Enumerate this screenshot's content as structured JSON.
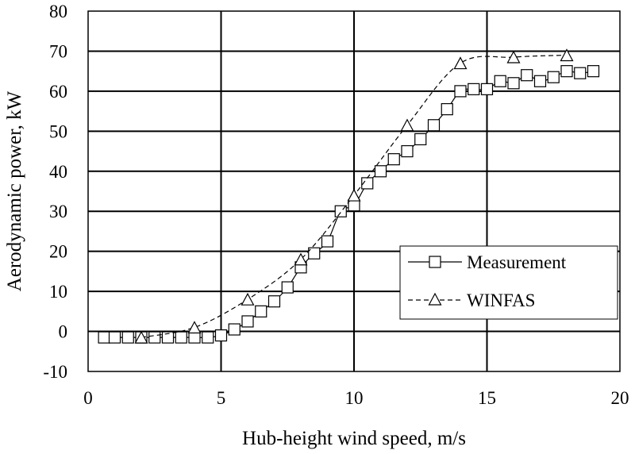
{
  "chart_data": {
    "type": "line",
    "title": "",
    "xlabel": "Hub-height wind speed, m/s",
    "ylabel": "Aerodynamic power, kW",
    "xlim": [
      0,
      20
    ],
    "ylim": [
      -10,
      80
    ],
    "x_ticks": [
      0,
      5,
      10,
      15,
      20
    ],
    "y_ticks": [
      -10,
      0,
      10,
      20,
      30,
      40,
      50,
      60,
      70,
      80
    ],
    "grid": true,
    "legend_position": "bottom-right",
    "series": [
      {
        "name": "Measurement",
        "marker": "square",
        "line": "solid",
        "x": [
          0.6,
          1.0,
          1.5,
          2.0,
          2.5,
          3.0,
          3.5,
          4.0,
          4.5,
          5.0,
          5.5,
          6.0,
          6.5,
          7.0,
          7.5,
          8.0,
          8.5,
          9.0,
          9.5,
          10.0,
          10.5,
          11.0,
          11.5,
          12.0,
          12.5,
          13.0,
          13.5,
          14.0,
          14.5,
          15.0,
          15.5,
          16.0,
          16.5,
          17.0,
          17.5,
          18.0,
          18.5,
          19.0
        ],
        "y": [
          -1.5,
          -1.5,
          -1.5,
          -1.5,
          -1.5,
          -1.5,
          -1.5,
          -1.5,
          -1.5,
          -1.0,
          0.5,
          2.5,
          5.0,
          7.5,
          11.0,
          16.0,
          19.5,
          22.5,
          30.0,
          31.5,
          37.0,
          40.0,
          43.0,
          45.0,
          48.0,
          51.5,
          55.5,
          60.0,
          60.5,
          60.5,
          62.5,
          62.0,
          64.0,
          62.5,
          63.5,
          65.0,
          64.5,
          65.0
        ]
      },
      {
        "name": "WINFAS",
        "marker": "triangle",
        "line": "dashed",
        "x": [
          2,
          4,
          6,
          8,
          10,
          12,
          14,
          16,
          18
        ],
        "y": [
          -1.5,
          1.0,
          8.0,
          18.0,
          34.0,
          51.5,
          67.0,
          68.5,
          69.0
        ]
      }
    ]
  }
}
